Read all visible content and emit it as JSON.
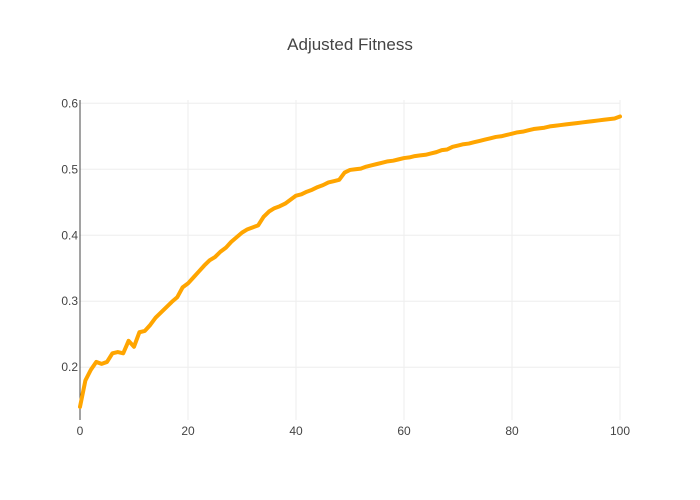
{
  "chart_data": {
    "type": "line",
    "title": "Adjusted Fitness",
    "xlabel": "",
    "ylabel": "",
    "xlim": [
      0,
      100
    ],
    "ylim": [
      0.12,
      0.605
    ],
    "x_ticks": [
      0,
      20,
      40,
      60,
      80,
      100
    ],
    "x_tick_labels": [
      "0",
      "20",
      "40",
      "60",
      "80",
      "100"
    ],
    "y_ticks": [
      0.2,
      0.3,
      0.4,
      0.5,
      0.6
    ],
    "y_tick_labels": [
      "0.2",
      "0.3",
      "0.4",
      "0.5",
      "0.6"
    ],
    "grid": true,
    "legend": "none",
    "series": [
      {
        "color": "#FFA500",
        "x": [
          0,
          1,
          2,
          3,
          4,
          5,
          6,
          7,
          8,
          9,
          10,
          11,
          12,
          13,
          14,
          15,
          16,
          17,
          18,
          19,
          20,
          21,
          22,
          23,
          24,
          25,
          26,
          27,
          28,
          29,
          30,
          31,
          32,
          33,
          34,
          35,
          36,
          37,
          38,
          39,
          40,
          41,
          42,
          43,
          44,
          45,
          46,
          47,
          48,
          49,
          50,
          51,
          52,
          53,
          54,
          55,
          56,
          57,
          58,
          59,
          60,
          61,
          62,
          63,
          64,
          65,
          66,
          67,
          68,
          69,
          70,
          71,
          72,
          73,
          74,
          75,
          76,
          77,
          78,
          79,
          80,
          81,
          82,
          83,
          84,
          85,
          86,
          87,
          88,
          89,
          90,
          91,
          92,
          93,
          94,
          95,
          96,
          97,
          98,
          99,
          100
        ],
        "y": [
          0.14,
          0.18,
          0.196,
          0.208,
          0.205,
          0.208,
          0.221,
          0.223,
          0.221,
          0.24,
          0.231,
          0.253,
          0.255,
          0.264,
          0.275,
          0.283,
          0.291,
          0.299,
          0.306,
          0.321,
          0.327,
          0.336,
          0.345,
          0.354,
          0.362,
          0.367,
          0.375,
          0.381,
          0.39,
          0.397,
          0.404,
          0.409,
          0.412,
          0.415,
          0.428,
          0.436,
          0.441,
          0.444,
          0.448,
          0.454,
          0.46,
          0.462,
          0.466,
          0.469,
          0.473,
          0.476,
          0.48,
          0.482,
          0.484,
          0.495,
          0.499,
          0.5,
          0.501,
          0.504,
          0.506,
          0.508,
          0.51,
          0.512,
          0.513,
          0.515,
          0.517,
          0.518,
          0.52,
          0.521,
          0.522,
          0.524,
          0.526,
          0.529,
          0.53,
          0.534,
          0.536,
          0.538,
          0.539,
          0.541,
          0.543,
          0.545,
          0.547,
          0.549,
          0.55,
          0.552,
          0.554,
          0.556,
          0.557,
          0.559,
          0.561,
          0.562,
          0.563,
          0.565,
          0.566,
          0.567,
          0.568,
          0.569,
          0.57,
          0.571,
          0.572,
          0.573,
          0.574,
          0.575,
          0.576,
          0.577,
          0.58
        ]
      }
    ]
  }
}
